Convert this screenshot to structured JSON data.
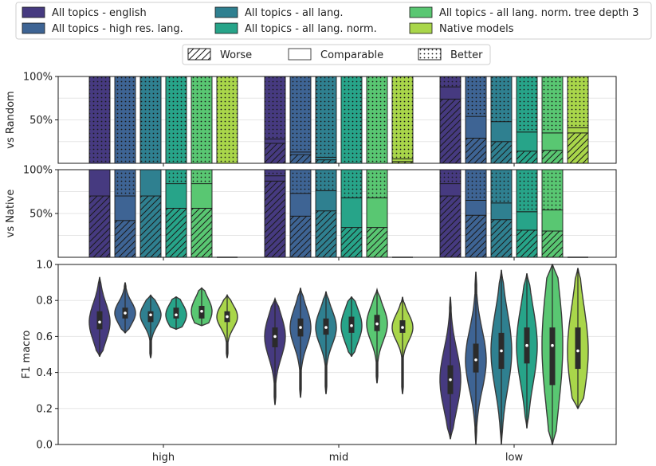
{
  "colors": {
    "All topics - english": "#463a80",
    "All topics - high res. lang.": "#3e6494",
    "All topics - all lang.": "#2f8090",
    "All topics - all lang. norm.": "#27a489",
    "All topics - all lang. norm. tree depth 3": "#59c772",
    "Native models": "#a9d64a"
  },
  "legend": {
    "series": [
      "All topics - english",
      "All topics - high res. lang.",
      "All topics - all lang.",
      "All topics - all lang. norm.",
      "All topics - all lang. norm. tree depth 3",
      "Native models"
    ],
    "hatches": [
      {
        "label": "Worse",
        "pattern": "diagonal"
      },
      {
        "label": "Comparable",
        "pattern": "none"
      },
      {
        "label": "Better",
        "pattern": "dots"
      }
    ]
  },
  "chart_data": [
    {
      "type": "bar",
      "stacked": true,
      "ylabel": "vs Random",
      "ylim": [
        0,
        100
      ],
      "yticks": [
        "50%",
        "100%"
      ],
      "categories": [
        "high",
        "mid",
        "low"
      ],
      "segments_order": [
        "Worse",
        "Comparable",
        "Better"
      ],
      "series": [
        {
          "name": "All topics - english",
          "worse": [
            0,
            23,
            74
          ],
          "comparable": [
            0,
            5,
            14
          ],
          "better": [
            100,
            72,
            12
          ]
        },
        {
          "name": "All topics - high res. lang.",
          "worse": [
            0,
            10,
            29
          ],
          "comparable": [
            0,
            3,
            25
          ],
          "better": [
            100,
            87,
            46
          ]
        },
        {
          "name": "All topics - all lang.",
          "worse": [
            0,
            4,
            25
          ],
          "comparable": [
            0,
            3,
            23
          ],
          "better": [
            100,
            93,
            52
          ]
        },
        {
          "name": "All topics - all lang. norm.",
          "worse": [
            0,
            0,
            14
          ],
          "comparable": [
            0,
            0,
            22
          ],
          "better": [
            100,
            100,
            64
          ]
        },
        {
          "name": "All topics - all lang. norm. tree depth 3",
          "worse": [
            0,
            0,
            15
          ],
          "comparable": [
            0,
            0,
            20
          ],
          "better": [
            100,
            100,
            65
          ]
        },
        {
          "name": "Native models",
          "worse": [
            0,
            2,
            35
          ],
          "comparable": [
            0,
            3,
            6
          ],
          "better": [
            100,
            95,
            59
          ]
        }
      ]
    },
    {
      "type": "bar",
      "stacked": true,
      "ylabel": "vs Native",
      "ylim": [
        0,
        100
      ],
      "yticks": [
        "50%",
        "100%"
      ],
      "categories": [
        "high",
        "mid",
        "low"
      ],
      "segments_order": [
        "Worse",
        "Comparable",
        "Better"
      ],
      "series": [
        {
          "name": "All topics - english",
          "worse": [
            70,
            87,
            70
          ],
          "comparable": [
            30,
            6,
            14
          ],
          "better": [
            0,
            7,
            16
          ]
        },
        {
          "name": "All topics - high res. lang.",
          "worse": [
            42,
            47,
            48
          ],
          "comparable": [
            28,
            26,
            17
          ],
          "better": [
            30,
            27,
            35
          ]
        },
        {
          "name": "All topics - all lang.",
          "worse": [
            70,
            53,
            43
          ],
          "comparable": [
            30,
            23,
            19
          ],
          "better": [
            0,
            24,
            38
          ]
        },
        {
          "name": "All topics - all lang. norm.",
          "worse": [
            56,
            34,
            31
          ],
          "comparable": [
            28,
            34,
            21
          ],
          "better": [
            16,
            32,
            48
          ]
        },
        {
          "name": "All topics - all lang. norm. tree depth 3",
          "worse": [
            56,
            34,
            30
          ],
          "comparable": [
            28,
            34,
            24
          ],
          "better": [
            16,
            32,
            46
          ]
        },
        {
          "name": "Native models",
          "worse": [
            0,
            0,
            0
          ],
          "comparable": [
            0,
            0,
            0
          ],
          "better": [
            0,
            0,
            0
          ]
        }
      ]
    },
    {
      "type": "violin",
      "ylabel": "F1 macro",
      "ylim": [
        0.0,
        1.0
      ],
      "yticks": [
        "0.0",
        "0.2",
        "0.4",
        "0.6",
        "0.8",
        "1.0"
      ],
      "categories": [
        "high",
        "mid",
        "low"
      ],
      "series": [
        {
          "name": "All topics - english",
          "min": [
            0.49,
            0.22,
            0.03
          ],
          "max": [
            0.93,
            0.81,
            0.82
          ],
          "q1": [
            0.64,
            0.54,
            0.28
          ],
          "median": [
            0.68,
            0.6,
            0.36
          ],
          "q3": [
            0.74,
            0.65,
            0.44
          ]
        },
        {
          "name": "All topics - high res. lang.",
          "min": [
            0.62,
            0.26,
            0.0
          ],
          "max": [
            0.9,
            0.87,
            0.96
          ],
          "q1": [
            0.7,
            0.6,
            0.4
          ],
          "median": [
            0.73,
            0.65,
            0.47
          ],
          "q3": [
            0.76,
            0.7,
            0.56
          ]
        },
        {
          "name": "All topics - all lang.",
          "min": [
            0.48,
            0.28,
            0.0
          ],
          "max": [
            0.83,
            0.85,
            0.97
          ],
          "q1": [
            0.68,
            0.61,
            0.42
          ],
          "median": [
            0.72,
            0.65,
            0.52
          ],
          "q3": [
            0.74,
            0.7,
            0.62
          ]
        },
        {
          "name": "All topics - all lang. norm.",
          "min": [
            0.64,
            0.49,
            0.09
          ],
          "max": [
            0.82,
            0.82,
            0.95
          ],
          "q1": [
            0.7,
            0.62,
            0.45
          ],
          "median": [
            0.72,
            0.66,
            0.55
          ],
          "q3": [
            0.76,
            0.71,
            0.65
          ]
        },
        {
          "name": "All topics - all lang. norm. tree depth 3",
          "min": [
            0.66,
            0.34,
            0.0
          ],
          "max": [
            0.87,
            0.86,
            1.0
          ],
          "q1": [
            0.7,
            0.63,
            0.33
          ],
          "median": [
            0.74,
            0.67,
            0.55
          ],
          "q3": [
            0.77,
            0.72,
            0.65
          ]
        },
        {
          "name": "Native models",
          "min": [
            0.48,
            0.28,
            0.2
          ],
          "max": [
            0.83,
            0.82,
            0.98
          ],
          "q1": [
            0.68,
            0.62,
            0.42
          ],
          "median": [
            0.71,
            0.65,
            0.52
          ],
          "q3": [
            0.74,
            0.69,
            0.65
          ]
        }
      ]
    }
  ]
}
